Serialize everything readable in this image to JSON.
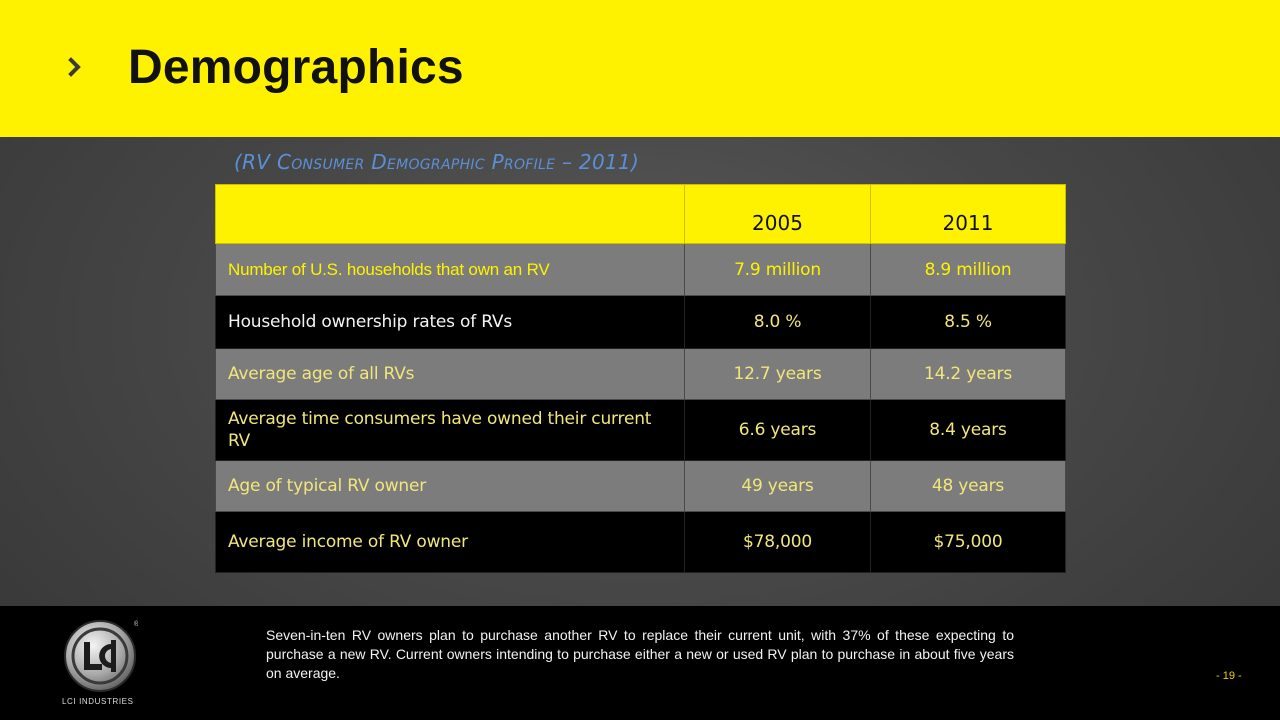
{
  "header": {
    "title": "Demographics",
    "chevron_icon": "chevron-right-icon",
    "background_color": "#fff200"
  },
  "subtitle": "(RV Consumer Demographic Profile – 2011)",
  "table": {
    "columns": [
      "",
      "2005",
      "2011"
    ],
    "rows": [
      {
        "label": "Number of U.S. households that own an RV",
        "v2005": "7.9 million",
        "v2011": "8.9 million"
      },
      {
        "label": "Household ownership rates of RVs",
        "v2005": "8.0 %",
        "v2011": "8.5 %"
      },
      {
        "label": "Average age of all RVs",
        "v2005": "12.7 years",
        "v2011": "14.2 years"
      },
      {
        "label": "Average time consumers have owned their current RV",
        "v2005": "6.6 years",
        "v2011": "8.4 years"
      },
      {
        "label": "Age of typical RV owner",
        "v2005": "49 years",
        "v2011": "48 years"
      },
      {
        "label": "Average income of RV owner",
        "v2005": "$78,000",
        "v2011": "$75,000"
      }
    ]
  },
  "footer": {
    "logo_text": "LCI INDUSTRIES",
    "note": "Seven-in-ten RV owners plan to purchase another RV to replace their current unit, with 37% of these expecting to purchase a new RV.  Current owners intending to purchase either a new or used RV plan to purchase in about five years on average.",
    "page_number": "- 19 -"
  }
}
